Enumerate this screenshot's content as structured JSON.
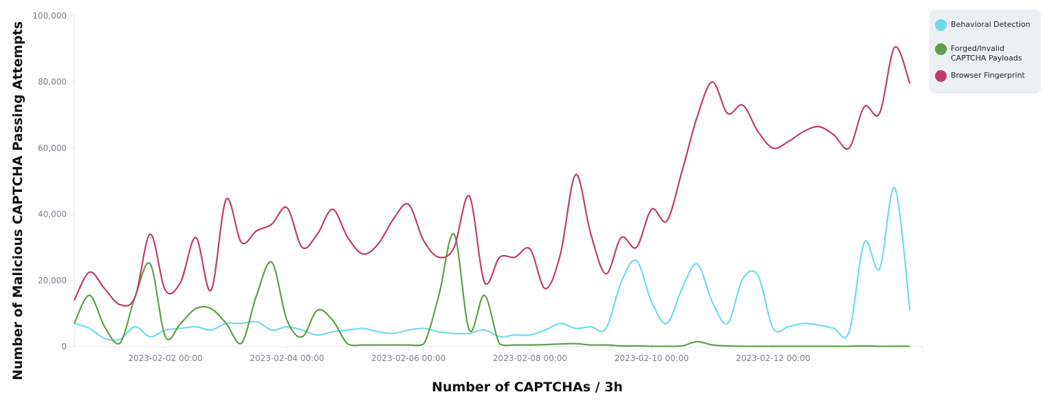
{
  "chart_data": {
    "type": "line",
    "title": "",
    "xlabel": "Number of CAPTCHAs / 3h",
    "ylabel": "Number of Malicious CAPTCHA Passing Attempts",
    "ylim": [
      0,
      100000
    ],
    "xlim": [
      "2023-01-31T12:00",
      "2023-02-14T06:00"
    ],
    "yticks": [
      0,
      20000,
      40000,
      60000,
      80000,
      100000
    ],
    "ytick_labels": [
      "0",
      "20,000",
      "40,000",
      "60,000",
      "80,000",
      "100,000"
    ],
    "xticks": [
      "2023-02-02T00:00",
      "2023-02-04T00:00",
      "2023-02-06T00:00",
      "2023-02-08T00:00",
      "2023-02-10T00:00",
      "2023-02-12T00:00"
    ],
    "xtick_labels": [
      "2023-02-02 00:00",
      "2023-02-04 00:00",
      "2023-02-06 00:00",
      "2023-02-08 00:00",
      "2023-02-10 00:00",
      "2023-02-12 00:00"
    ],
    "x_start": "2023-01-31T12:00",
    "x_step_hours": 6,
    "grid": false,
    "legend_position": "top-right",
    "series": [
      {
        "name": "Behavioral Detection",
        "color": "#6fdaec",
        "values": [
          7000,
          5500,
          2500,
          2200,
          6000,
          3000,
          5000,
          5500,
          6000,
          5000,
          7000,
          7000,
          7500,
          5000,
          6000,
          5000,
          3500,
          4500,
          5000,
          5500,
          4500,
          4000,
          5000,
          5500,
          4500,
          4000,
          4000,
          5000,
          3000,
          3500,
          3500,
          5000,
          7000,
          5500,
          6000,
          5500,
          19500,
          26000,
          13500,
          7000,
          17500,
          25000,
          13500,
          7000,
          20500,
          21500,
          5500,
          6000,
          7000,
          6500,
          5500,
          4500,
          31500,
          23500,
          48000,
          11000
        ]
      },
      {
        "name": "Forged/Invalid CAPTCHA Payloads",
        "color": "#5e9e4a",
        "values": [
          7000,
          15500,
          6000,
          1000,
          15000,
          25000,
          3000,
          7000,
          11500,
          11500,
          7000,
          1000,
          15500,
          25500,
          8000,
          3000,
          11000,
          8000,
          800,
          500,
          500,
          500,
          500,
          800,
          15500,
          34000,
          5000,
          15500,
          800,
          500,
          500,
          600,
          800,
          900,
          500,
          500,
          200,
          200,
          100,
          100,
          200,
          1500,
          500,
          200,
          100,
          100,
          100,
          100,
          100,
          100,
          100,
          100,
          200,
          100,
          100,
          100
        ]
      },
      {
        "name": "Browser Fingerprint",
        "color": "#c23a68",
        "values": [
          14000,
          22500,
          17500,
          12700,
          15000,
          34000,
          17000,
          19500,
          33000,
          17000,
          44500,
          31500,
          35000,
          37000,
          42000,
          30000,
          34000,
          41500,
          33000,
          28000,
          31000,
          38500,
          43000,
          32000,
          27000,
          30000,
          45500,
          19500,
          27000,
          27000,
          29500,
          17500,
          28000,
          52000,
          34000,
          22000,
          33000,
          30000,
          41500,
          38000,
          53000,
          69500,
          80000,
          70500,
          73000,
          65000,
          60000,
          62000,
          65000,
          66500,
          64000,
          60000,
          72500,
          70500,
          90500,
          79500
        ]
      }
    ]
  }
}
